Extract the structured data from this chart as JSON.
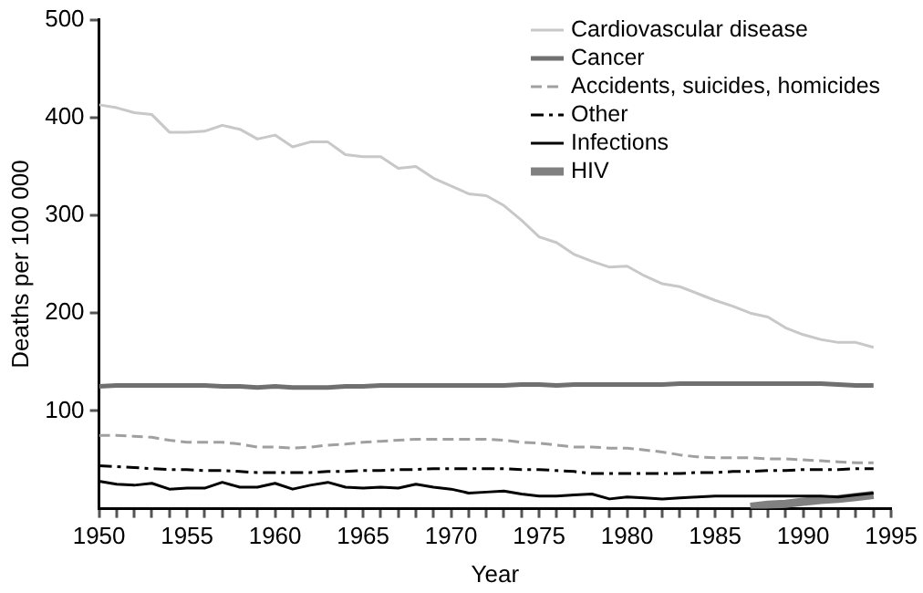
{
  "chart_data": {
    "type": "line",
    "xlabel": "Year",
    "ylabel": "Deaths per 100 000",
    "xlim": [
      1950,
      1995
    ],
    "ylim": [
      0,
      500
    ],
    "xticks": [
      1950,
      {
        "value": 1951,
        "label": null
      },
      {
        "value": 1952,
        "label": null
      },
      {
        "value": 1953,
        "label": null
      },
      {
        "value": 1954,
        "label": null
      },
      1955,
      {
        "value": 1956,
        "label": null
      },
      {
        "value": 1957,
        "label": null
      },
      {
        "value": 1958,
        "label": null
      },
      {
        "value": 1959,
        "label": null
      },
      1960,
      {
        "value": 1961,
        "label": null
      },
      {
        "value": 1962,
        "label": null
      },
      {
        "value": 1963,
        "label": null
      },
      {
        "value": 1964,
        "label": null
      },
      1965,
      {
        "value": 1966,
        "label": null
      },
      {
        "value": 1967,
        "label": null
      },
      {
        "value": 1968,
        "label": null
      },
      {
        "value": 1969,
        "label": null
      },
      1970,
      {
        "value": 1971,
        "label": null
      },
      {
        "value": 1972,
        "label": null
      },
      {
        "value": 1973,
        "label": null
      },
      {
        "value": 1974,
        "label": null
      },
      1975,
      {
        "value": 1976,
        "label": null
      },
      {
        "value": 1977,
        "label": null
      },
      {
        "value": 1978,
        "label": null
      },
      {
        "value": 1979,
        "label": null
      },
      1980,
      {
        "value": 1981,
        "label": null
      },
      {
        "value": 1982,
        "label": null
      },
      {
        "value": 1983,
        "label": null
      },
      {
        "value": 1984,
        "label": null
      },
      1985,
      {
        "value": 1986,
        "label": null
      },
      {
        "value": 1987,
        "label": null
      },
      {
        "value": 1988,
        "label": null
      },
      {
        "value": 1989,
        "label": null
      },
      1990,
      {
        "value": 1991,
        "label": null
      },
      {
        "value": 1992,
        "label": null
      },
      {
        "value": 1993,
        "label": null
      },
      {
        "value": 1994,
        "label": null
      },
      1995
    ],
    "yticks": [
      100,
      200,
      300,
      400,
      500
    ],
    "grid": false,
    "legend": "top right",
    "marker": "none",
    "x": [
      1950,
      1951,
      1952,
      1953,
      1954,
      1955,
      1956,
      1957,
      1958,
      1959,
      1960,
      1961,
      1962,
      1963,
      1964,
      1965,
      1966,
      1967,
      1968,
      1969,
      1970,
      1971,
      1972,
      1973,
      1974,
      1975,
      1976,
      1977,
      1978,
      1979,
      1980,
      1981,
      1982,
      1983,
      1984,
      1985,
      1986,
      1987,
      1988,
      1989,
      1990,
      1991,
      1992,
      1993,
      1994
    ],
    "series": [
      {
        "name": "Cardiovascular disease",
        "color": "#c8c8c8",
        "line_style": "solid",
        "values": [
          413,
          410,
          405,
          403,
          385,
          385,
          386,
          392,
          388,
          378,
          382,
          370,
          375,
          375,
          362,
          360,
          360,
          348,
          350,
          338,
          330,
          322,
          320,
          310,
          295,
          278,
          272,
          260,
          253,
          247,
          248,
          238,
          230,
          227,
          220,
          213,
          207,
          200,
          196,
          185,
          178,
          173,
          170,
          170,
          165
        ]
      },
      {
        "name": "Cancer",
        "color": "#707070",
        "line_style": "solid",
        "values": [
          125,
          126,
          126,
          126,
          126,
          126,
          126,
          125,
          125,
          124,
          125,
          124,
          124,
          124,
          125,
          125,
          126,
          126,
          126,
          126,
          126,
          126,
          126,
          126,
          127,
          127,
          126,
          127,
          127,
          127,
          127,
          127,
          127,
          128,
          128,
          128,
          128,
          128,
          128,
          128,
          128,
          128,
          127,
          126,
          126
        ]
      },
      {
        "name": "Accidents, suicides, homicides",
        "color": "#a0a0a0",
        "line_style": "dashed",
        "values": [
          75,
          75,
          74,
          73,
          70,
          68,
          68,
          68,
          66,
          63,
          63,
          62,
          63,
          65,
          66,
          68,
          69,
          70,
          71,
          71,
          71,
          71,
          71,
          70,
          68,
          67,
          65,
          63,
          63,
          62,
          62,
          60,
          58,
          55,
          53,
          52,
          52,
          52,
          51,
          51,
          50,
          49,
          48,
          47,
          47
        ]
      },
      {
        "name": "Other",
        "color": "#000000",
        "line_style": "dashdot",
        "values": [
          44,
          43,
          42,
          41,
          40,
          40,
          39,
          39,
          38,
          37,
          37,
          37,
          37,
          38,
          38,
          39,
          39,
          40,
          40,
          41,
          41,
          41,
          41,
          41,
          40,
          40,
          39,
          38,
          36,
          36,
          36,
          36,
          36,
          36,
          37,
          37,
          38,
          38,
          39,
          39,
          40,
          40,
          40,
          41,
          41
        ]
      },
      {
        "name": "Infections",
        "color": "#000000",
        "line_style": "solid",
        "values": [
          28,
          25,
          24,
          26,
          20,
          21,
          21,
          27,
          22,
          22,
          26,
          20,
          24,
          27,
          22,
          21,
          22,
          21,
          25,
          22,
          20,
          16,
          17,
          18,
          15,
          13,
          13,
          14,
          15,
          10,
          12,
          11,
          10,
          11,
          12,
          13,
          13,
          13,
          13,
          13,
          13,
          13,
          12,
          14,
          16
        ]
      },
      {
        "name": "HIV",
        "color": "#808080",
        "line_style": "solid",
        "x": [
          1987,
          1988,
          1989,
          1990,
          1991,
          1992,
          1993,
          1994
        ],
        "values": [
          2,
          4,
          5,
          7,
          9,
          10,
          12,
          14
        ]
      }
    ]
  }
}
